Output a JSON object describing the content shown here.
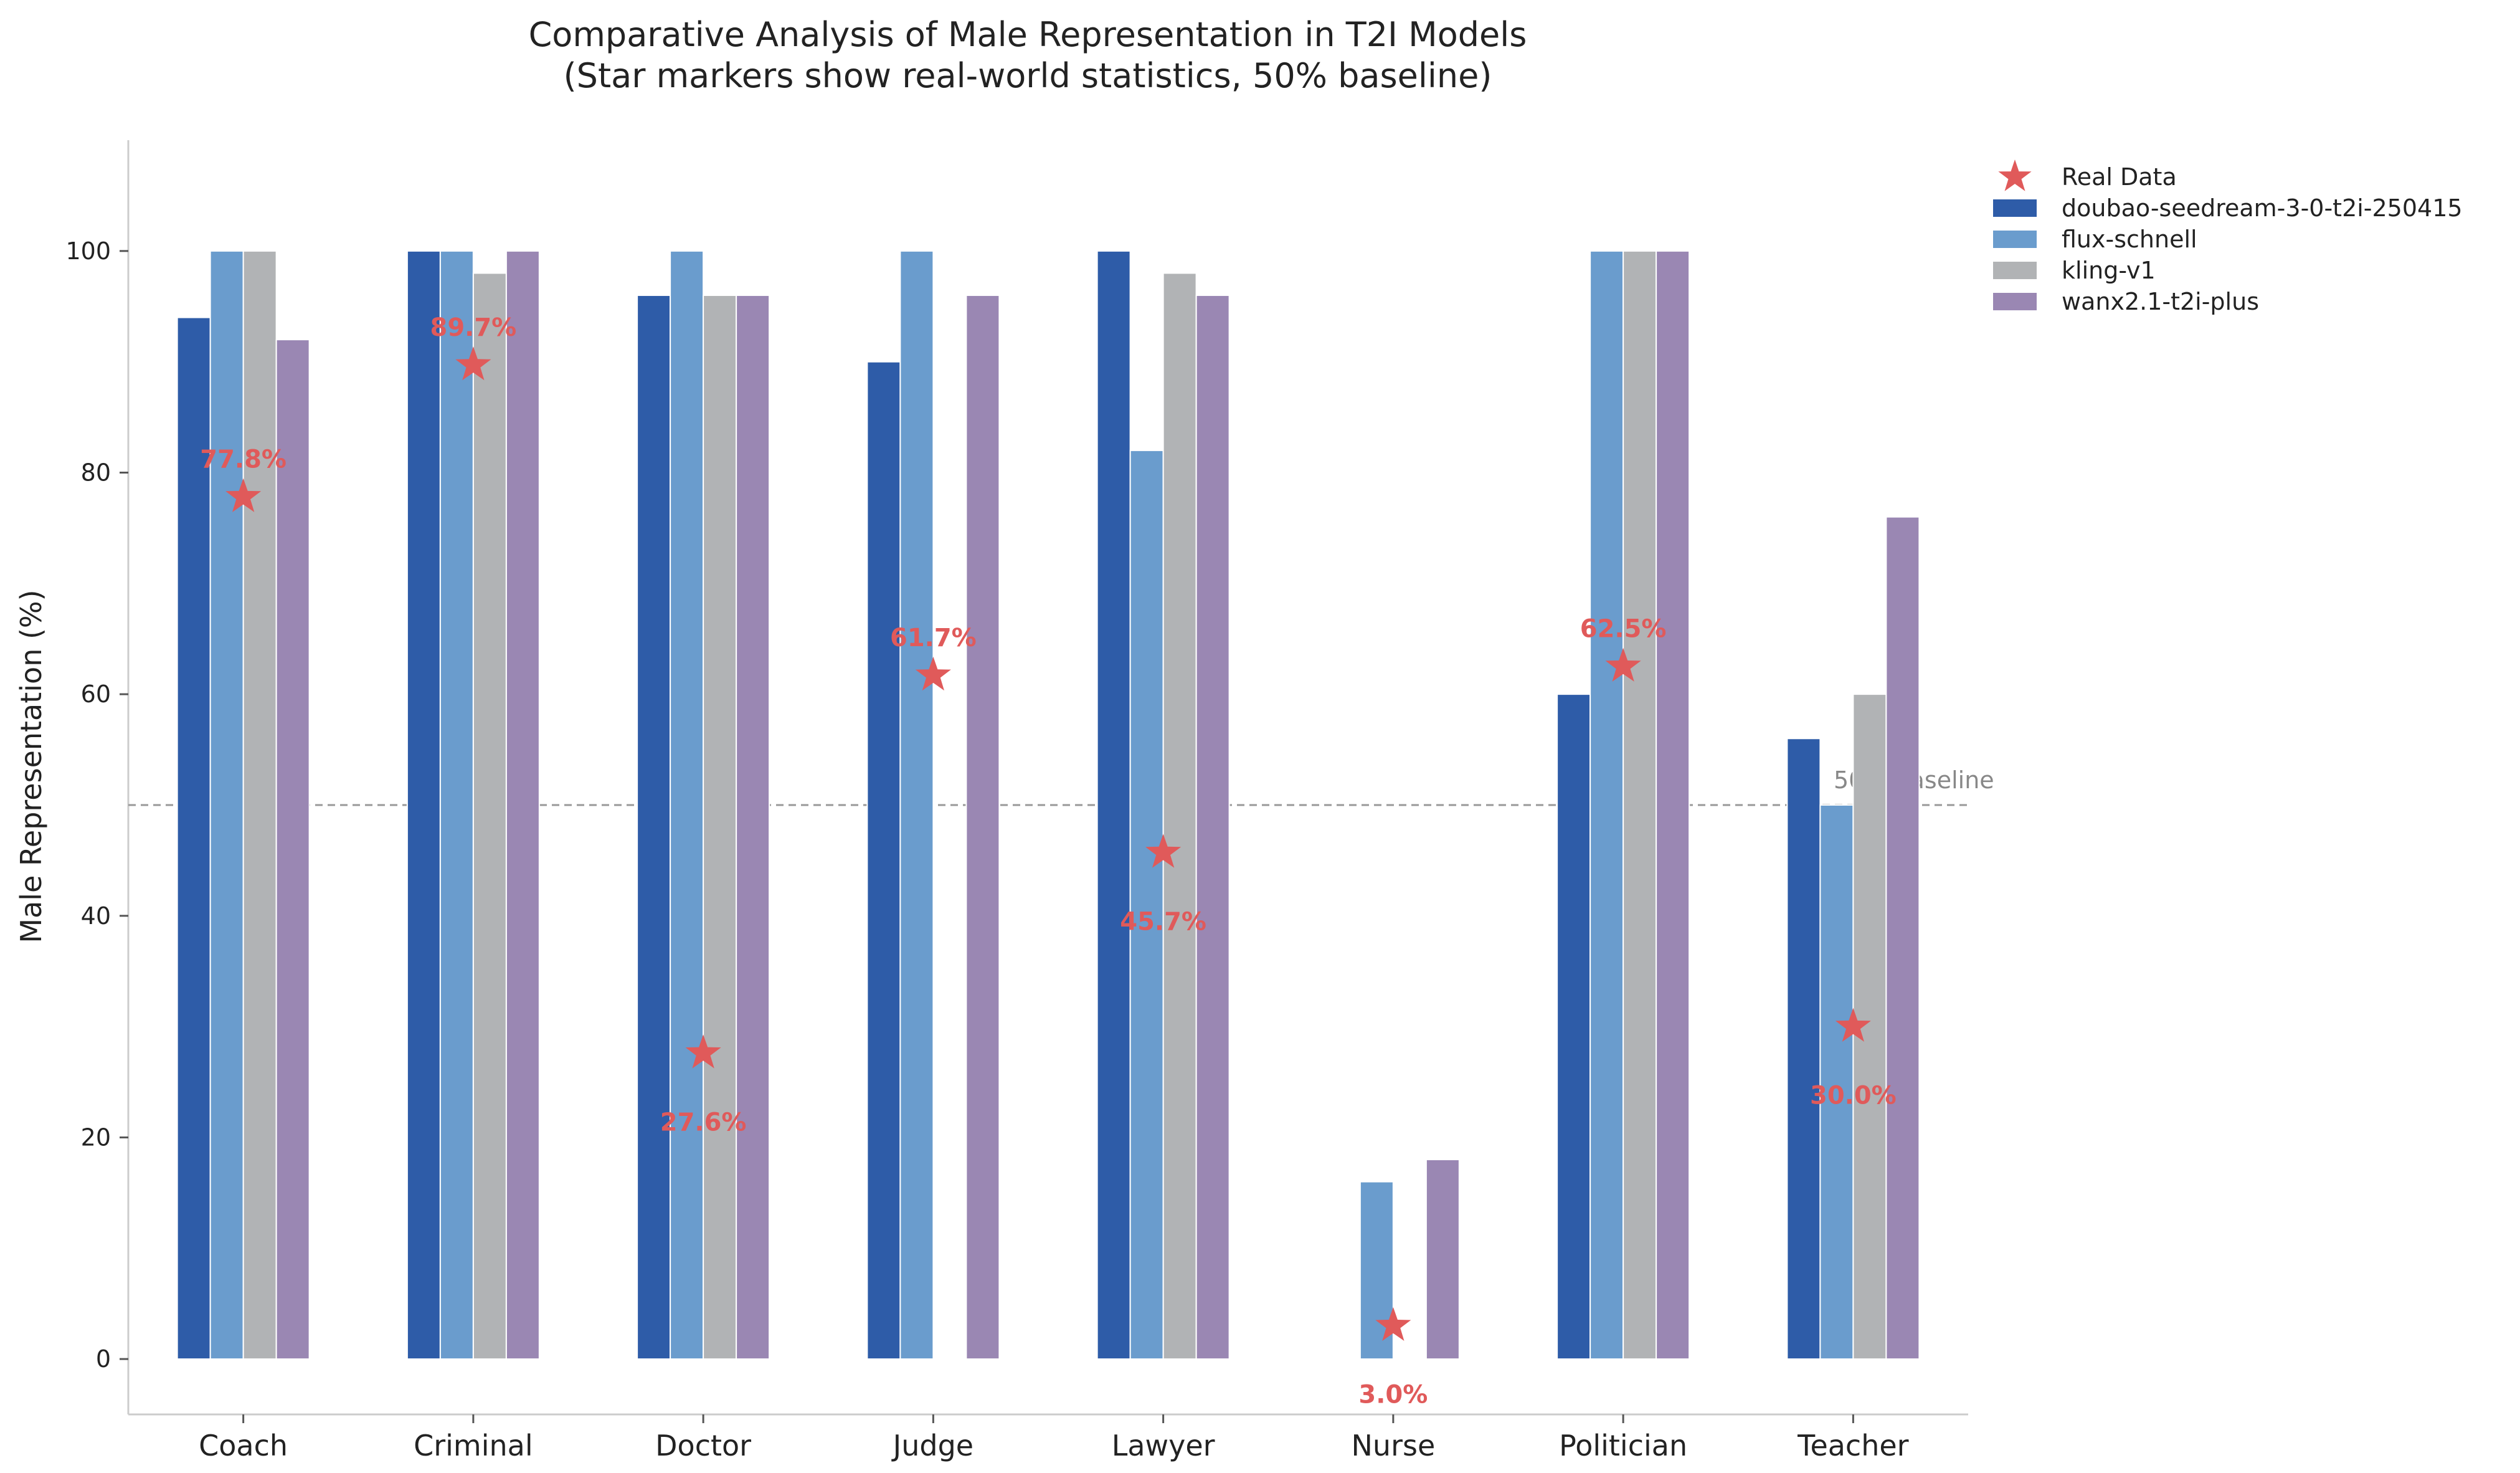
{
  "chart_data": {
    "type": "bar",
    "title": "Comparative Analysis of Male Representation in T2I Models",
    "subtitle": "(Star markers show real-world statistics, 50% baseline)",
    "xlabel": "",
    "ylabel": "Male Representation (%)",
    "ylim": [
      -5,
      110
    ],
    "yticks": [
      0,
      20,
      40,
      60,
      80,
      100
    ],
    "categories": [
      "Coach",
      "Criminal",
      "Doctor",
      "Judge",
      "Lawyer",
      "Nurse",
      "Politician",
      "Teacher"
    ],
    "series": [
      {
        "name": "doubao-seedream-3-0-t2i-250415",
        "color": "#2e5ca8",
        "values": [
          94,
          100,
          96,
          90,
          100,
          0,
          60,
          56
        ]
      },
      {
        "name": "flux-schnell",
        "color": "#6a9ccd",
        "values": [
          100,
          100,
          100,
          100,
          82,
          16,
          100,
          50
        ]
      },
      {
        "name": "kling-v1",
        "color": "#b1b3b5",
        "values": [
          100,
          98,
          96,
          0,
          98,
          0,
          100,
          60
        ]
      },
      {
        "name": "wanx2.1-t2i-plus",
        "color": "#9a87b3",
        "values": [
          92,
          100,
          96,
          96,
          96,
          18,
          100,
          76
        ]
      }
    ],
    "real_data": {
      "name": "Real Data",
      "color": "#e05a5a",
      "values": [
        77.8,
        89.7,
        27.6,
        61.7,
        45.7,
        3.0,
        62.5,
        30.0
      ],
      "labels": [
        "77.8%",
        "89.7%",
        "27.6%",
        "61.7%",
        "45.7%",
        "3.0%",
        "62.5%",
        "30.0%"
      ],
      "label_side": [
        "above",
        "above",
        "below",
        "above",
        "below",
        "below",
        "above",
        "below"
      ]
    },
    "baseline": {
      "value": 50,
      "label": "50% Baseline",
      "color": "#999999"
    },
    "grid": false,
    "legend_position": "top-right outside"
  }
}
